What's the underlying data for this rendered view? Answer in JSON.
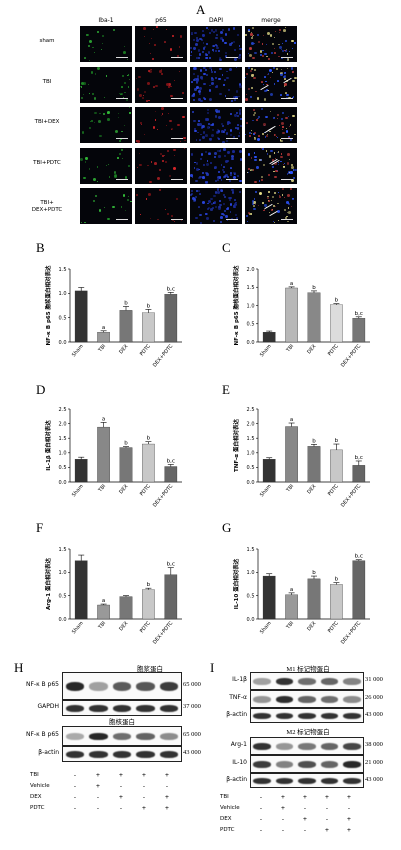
{
  "figure": {
    "panel_A": {
      "letter": "A",
      "columns": [
        "Iba-1",
        "p65",
        "DAPI",
        "merge"
      ],
      "rows": [
        "sham",
        "TBI",
        "TBI+DEX",
        "TBI+PDTC",
        "TBI+\nDEX+PDTC"
      ]
    },
    "panel_B": {
      "letter": "B"
    },
    "panel_C": {
      "letter": "C"
    },
    "panel_D": {
      "letter": "D"
    },
    "panel_E": {
      "letter": "E"
    },
    "panel_F": {
      "letter": "F"
    },
    "panel_G": {
      "letter": "G"
    },
    "panel_H": {
      "letter": "H",
      "cyto_title": "胞浆蛋白",
      "nuc_title": "胞核蛋白",
      "cyto_rows": [
        {
          "label": "NF-κ B p65",
          "kda": "65 000"
        },
        {
          "label": "GAPDH",
          "kda": "37 000"
        }
      ],
      "nuc_rows": [
        {
          "label": "NF-κ B p65",
          "kda": "65 000"
        },
        {
          "label": "β-actin",
          "kda": "43 000"
        }
      ],
      "treatments": [
        {
          "label": "TBI",
          "signs": [
            "-",
            "+",
            "+",
            "+",
            "+"
          ]
        },
        {
          "label": "Vehicle",
          "signs": [
            "-",
            "+",
            "-",
            "-",
            "-"
          ]
        },
        {
          "label": "DEX",
          "signs": [
            "-",
            "-",
            "+",
            "-",
            "+"
          ]
        },
        {
          "label": "PDTC",
          "signs": [
            "-",
            "-",
            "-",
            "+",
            "+"
          ]
        }
      ]
    },
    "panel_I": {
      "letter": "I",
      "m1_title": "M1 标记物蛋白",
      "m2_title": "M2 标记物蛋白",
      "m1_rows": [
        {
          "label": "IL-1β",
          "kda": "31 000"
        },
        {
          "label": "TNF-α",
          "kda": "26 000"
        },
        {
          "label": "β-actin",
          "kda": "43 000"
        }
      ],
      "m2_rows": [
        {
          "label": "Arg-1",
          "kda": "38 000"
        },
        {
          "label": "IL-10",
          "kda": "21 000"
        },
        {
          "label": "β-actin",
          "kda": "43 000"
        }
      ],
      "treatments": [
        {
          "label": "TBI",
          "signs": [
            "-",
            "+",
            "+",
            "+",
            "+"
          ]
        },
        {
          "label": "Vehicle",
          "signs": [
            "-",
            "+",
            "-",
            "-",
            "-"
          ]
        },
        {
          "label": "DEX",
          "signs": [
            "-",
            "-",
            "+",
            "-",
            "+"
          ]
        },
        {
          "label": "PDTC",
          "signs": [
            "-",
            "-",
            "-",
            "+",
            "+"
          ]
        }
      ]
    }
  },
  "chart_data": [
    {
      "id": "B",
      "type": "bar",
      "categories": [
        "Sham",
        "TBI",
        "DEX",
        "PDTC",
        "DEX+PDTC"
      ],
      "values": [
        1.05,
        0.2,
        0.65,
        0.6,
        0.98
      ],
      "errors": [
        0.07,
        0.03,
        0.08,
        0.07,
        0.04
      ],
      "letters": [
        "",
        "a",
        "b",
        "b",
        "b,c"
      ],
      "ylabel": "NF-κ B p65 胞浆蛋白相对表达",
      "ylim": [
        0,
        1.5
      ],
      "yticks": [
        0,
        0.5,
        1.0,
        1.5
      ],
      "colors": [
        "#333333",
        "#999999",
        "#777777",
        "#c8c8c8",
        "#666666"
      ]
    },
    {
      "id": "C",
      "type": "bar",
      "categories": [
        "Sham",
        "TBI",
        "DEX",
        "PDTC",
        "DEX+PDTC"
      ],
      "values": [
        0.27,
        1.48,
        1.35,
        1.02,
        0.65
      ],
      "errors": [
        0.03,
        0.03,
        0.05,
        0.03,
        0.04
      ],
      "letters": [
        "",
        "a",
        "b",
        "b",
        "b,c"
      ],
      "ylabel": "NF-κ B p65 胞核蛋白相对表达",
      "ylim": [
        0,
        2.0
      ],
      "yticks": [
        0,
        0.5,
        1.0,
        1.5,
        2.0
      ],
      "colors": [
        "#333333",
        "#b8b8b8",
        "#888888",
        "#dcdcdc",
        "#777777"
      ]
    },
    {
      "id": "D",
      "type": "bar",
      "categories": [
        "Sham",
        "TBI",
        "DEX",
        "PDTC",
        "DEX+PDTC"
      ],
      "values": [
        0.78,
        1.88,
        1.18,
        1.3,
        0.53
      ],
      "errors": [
        0.07,
        0.16,
        0.03,
        0.08,
        0.07
      ],
      "letters": [
        "",
        "a",
        "b",
        "b",
        "b,c"
      ],
      "ylabel": "IL-1β 蛋白相对表达",
      "ylim": [
        0,
        2.5
      ],
      "yticks": [
        0,
        0.5,
        1.0,
        1.5,
        2.0,
        2.5
      ],
      "colors": [
        "#333333",
        "#888888",
        "#777777",
        "#c8c8c8",
        "#666666"
      ]
    },
    {
      "id": "E",
      "type": "bar",
      "categories": [
        "Sham",
        "TBI",
        "DEX",
        "PDTC",
        "DEX+PDTC"
      ],
      "values": [
        0.78,
        1.9,
        1.22,
        1.1,
        0.57
      ],
      "errors": [
        0.05,
        0.12,
        0.07,
        0.2,
        0.15
      ],
      "letters": [
        "",
        "a",
        "b",
        "b",
        "b,c"
      ],
      "ylabel": "TNF-α 蛋白相对表达",
      "ylim": [
        0,
        2.5
      ],
      "yticks": [
        0,
        0.5,
        1.0,
        1.5,
        2.0,
        2.5
      ],
      "colors": [
        "#333333",
        "#888888",
        "#777777",
        "#c8c8c8",
        "#666666"
      ]
    },
    {
      "id": "F",
      "type": "bar",
      "categories": [
        "Sham",
        "TBI",
        "DEX",
        "PDTC",
        "DEX+PDTC"
      ],
      "values": [
        1.25,
        0.3,
        0.48,
        0.63,
        0.95
      ],
      "errors": [
        0.12,
        0.02,
        0.02,
        0.03,
        0.15
      ],
      "letters": [
        "",
        "a",
        "",
        "b",
        "b,c"
      ],
      "ylabel": "Arg-1 蛋白相对表达",
      "ylim": [
        0,
        1.5
      ],
      "yticks": [
        0,
        0.5,
        1.0,
        1.5
      ],
      "colors": [
        "#333333",
        "#999999",
        "#777777",
        "#c8c8c8",
        "#666666"
      ]
    },
    {
      "id": "G",
      "type": "bar",
      "categories": [
        "Sham",
        "TBI",
        "DEX",
        "PDTC",
        "DEX+PDTC"
      ],
      "values": [
        0.92,
        0.52,
        0.86,
        0.74,
        1.25
      ],
      "errors": [
        0.05,
        0.04,
        0.06,
        0.04,
        0.02
      ],
      "letters": [
        "",
        "a",
        "b",
        "b",
        "b,c"
      ],
      "ylabel": "IL-10 蛋白相对表达",
      "ylim": [
        0,
        1.5
      ],
      "yticks": [
        0,
        0.5,
        1.0,
        1.5
      ],
      "colors": [
        "#333333",
        "#999999",
        "#777777",
        "#c8c8c8",
        "#666666"
      ]
    }
  ]
}
